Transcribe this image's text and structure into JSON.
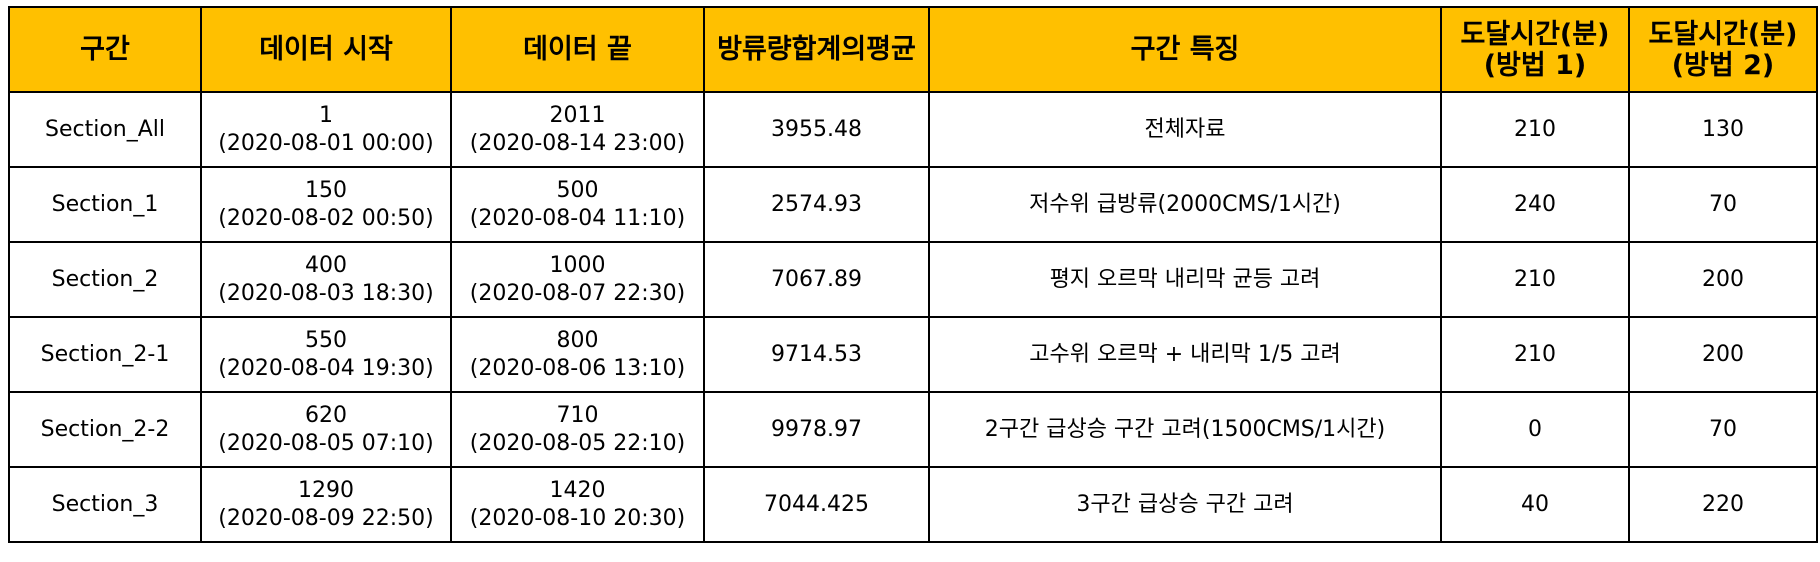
{
  "table": {
    "headers": [
      [
        "구간"
      ],
      [
        "데이터 시작"
      ],
      [
        "데이터 끝"
      ],
      [
        "방류량합계의",
        "평균"
      ],
      [
        "구간 특징"
      ],
      [
        "도달시간(분)",
        "(방법 1)"
      ],
      [
        "도달시간(분)",
        "(방법 2)"
      ]
    ],
    "rows": [
      {
        "section": "Section_All",
        "start_idx": "1",
        "start_time": "(2020-08-01 00:00)",
        "end_idx": "2011",
        "end_time": "(2020-08-14 23:00)",
        "avg": "3955.48",
        "feature": "전체자료",
        "m1": "210",
        "m2": "130"
      },
      {
        "section": "Section_1",
        "start_idx": "150",
        "start_time": "(2020-08-02 00:50)",
        "end_idx": "500",
        "end_time": "(2020-08-04 11:10)",
        "avg": "2574.93",
        "feature": "저수위 급방류(2000CMS/1시간)",
        "m1": "240",
        "m2": "70"
      },
      {
        "section": "Section_2",
        "start_idx": "400",
        "start_time": "(2020-08-03 18:30)",
        "end_idx": "1000",
        "end_time": "(2020-08-07 22:30)",
        "avg": "7067.89",
        "feature": "평지 오르막 내리막 균등 고려",
        "m1": "210",
        "m2": "200"
      },
      {
        "section": "Section_2-1",
        "start_idx": "550",
        "start_time": "(2020-08-04 19:30)",
        "end_idx": "800",
        "end_time": "(2020-08-06 13:10)",
        "avg": "9714.53",
        "feature": "고수위 오르막 + 내리막 1/5 고려",
        "m1": "210",
        "m2": "200"
      },
      {
        "section": "Section_2-2",
        "start_idx": "620",
        "start_time": "(2020-08-05 07:10)",
        "end_idx": "710",
        "end_time": "(2020-08-05 22:10)",
        "avg": "9978.97",
        "feature": "2구간 급상승 구간 고려(1500CMS/1시간)",
        "m1": "0",
        "m2": "70"
      },
      {
        "section": "Section_3",
        "start_idx": "1290",
        "start_time": "(2020-08-09 22:50)",
        "end_idx": "1420",
        "end_time": "(2020-08-10 20:30)",
        "avg": "7044.425",
        "feature": "3구간 급상승 구간 고려",
        "m1": "40",
        "m2": "220"
      }
    ]
  },
  "colors": {
    "header_bg": "#ffc000",
    "border": "#000000"
  }
}
